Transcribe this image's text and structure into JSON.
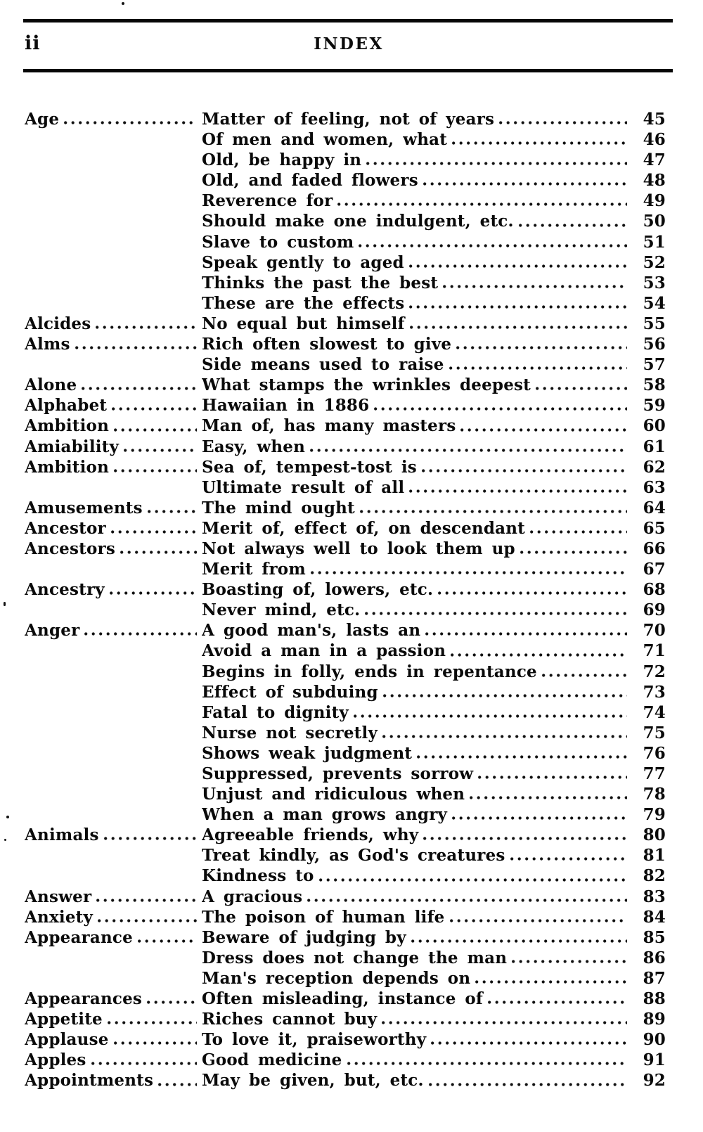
{
  "header": {
    "folio": "ii",
    "title": "INDEX"
  },
  "colors": {
    "ink": "#0a0a0a",
    "paper": "#ffffff"
  },
  "index_entries": [
    {
      "term": "Age",
      "description": "Matter of feeling, not of years",
      "page": "45"
    },
    {
      "term": "",
      "description": "Of men and women, what",
      "page": "46"
    },
    {
      "term": "",
      "description": "Old, be happy in",
      "page": "47"
    },
    {
      "term": "",
      "description": "Old, and faded flowers",
      "page": "48"
    },
    {
      "term": "",
      "description": "Reverence for",
      "page": "49"
    },
    {
      "term": "",
      "description": "Should make one indulgent, etc.",
      "page": "50"
    },
    {
      "term": "",
      "description": "Slave to custom",
      "page": "51"
    },
    {
      "term": "",
      "description": "Speak gently to aged",
      "page": "52"
    },
    {
      "term": "",
      "description": "Thinks the past the best",
      "page": "53"
    },
    {
      "term": "",
      "description": "These are the effects",
      "page": "54"
    },
    {
      "term": "Alcides",
      "description": "No equal but himself",
      "page": "55"
    },
    {
      "term": "Alms",
      "description": "Rich often slowest to give",
      "page": "56"
    },
    {
      "term": "",
      "description": "Side means used to raise",
      "page": "57"
    },
    {
      "term": "Alone",
      "description": "What stamps the wrinkles deepest",
      "page": "58"
    },
    {
      "term": "Alphabet",
      "description": "Hawaiian in 1886",
      "page": "59"
    },
    {
      "term": "Ambition",
      "description": "Man of, has many masters",
      "page": "60"
    },
    {
      "term": "Amiability",
      "description": "Easy, when",
      "page": "61"
    },
    {
      "term": "Ambition",
      "description": "Sea of, tempest-tost is",
      "page": "62"
    },
    {
      "term": "",
      "description": "Ultimate result of all",
      "page": "63"
    },
    {
      "term": "Amusements",
      "description": "The mind ought",
      "page": "64"
    },
    {
      "term": "Ancestor",
      "description": "Merit of, effect of, on descendant",
      "page": "65"
    },
    {
      "term": "Ancestors",
      "description": "Not always well to look them up",
      "page": "66"
    },
    {
      "term": "",
      "description": "Merit from",
      "page": "67"
    },
    {
      "term": "Ancestry",
      "description": "Boasting of, lowers, etc.",
      "page": "68"
    },
    {
      "term": "",
      "description": "Never mind, etc.",
      "page": "69"
    },
    {
      "term": "Anger",
      "description": "A good man's, lasts an",
      "page": "70"
    },
    {
      "term": "",
      "description": "Avoid a man in a passion",
      "page": "71"
    },
    {
      "term": "",
      "description": "Begins in folly, ends in repentance",
      "page": "72"
    },
    {
      "term": "",
      "description": "Effect of subduing",
      "page": "73"
    },
    {
      "term": "",
      "description": "Fatal to dignity",
      "page": "74"
    },
    {
      "term": "",
      "description": "Nurse not secretly",
      "page": "75"
    },
    {
      "term": "",
      "description": "Shows weak judgment",
      "page": "76"
    },
    {
      "term": "",
      "description": "Suppressed, prevents sorrow",
      "page": "77"
    },
    {
      "term": "",
      "description": "Unjust and ridiculous when",
      "page": "78"
    },
    {
      "term": "",
      "description": "When a man grows angry",
      "page": "79"
    },
    {
      "term": "Animals",
      "description": "Agreeable friends, why",
      "page": "80"
    },
    {
      "term": "",
      "description": "Treat kindly, as God's creatures",
      "page": "81"
    },
    {
      "term": "",
      "description": "Kindness to",
      "page": "82"
    },
    {
      "term": "Answer",
      "description": "A gracious",
      "page": "83"
    },
    {
      "term": "Anxiety",
      "description": "The poison of human life",
      "page": "84"
    },
    {
      "term": "Appearance",
      "description": "Beware of judging by",
      "page": "85"
    },
    {
      "term": "",
      "description": "Dress does not change the man",
      "page": "86"
    },
    {
      "term": "",
      "description": "Man's reception depends on",
      "page": "87"
    },
    {
      "term": "Appearances",
      "description": "Often misleading, instance of",
      "page": "88"
    },
    {
      "term": "Appetite",
      "description": "Riches cannot buy",
      "page": "89"
    },
    {
      "term": "Applause",
      "description": "To love it, praiseworthy",
      "page": "90"
    },
    {
      "term": "Apples",
      "description": "Good medicine",
      "page": "91"
    },
    {
      "term": "Appointments",
      "description": "May be given, but, etc.",
      "page": "92"
    }
  ]
}
